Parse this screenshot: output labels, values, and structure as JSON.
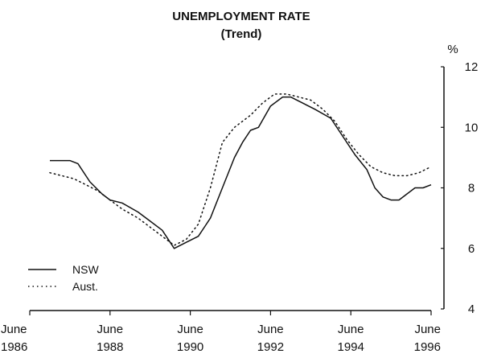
{
  "chart_data": {
    "type": "line",
    "title": "UNEMPLOYMENT RATE",
    "subtitle": "(Trend)",
    "y_unit": "%",
    "ylim": [
      4,
      12
    ],
    "y_ticks": [
      "4",
      "6",
      "8",
      "10",
      "12"
    ],
    "y_axis_side": "right",
    "x_ticks": [
      {
        "line1": "June",
        "line2": "1986"
      },
      {
        "line1": "June",
        "line2": "1988"
      },
      {
        "line1": "June",
        "line2": "1990"
      },
      {
        "line1": "June",
        "line2": "1992"
      },
      {
        "line1": "June",
        "line2": "1994"
      },
      {
        "line1": "June",
        "line2": "1996"
      }
    ],
    "xlim": [
      1986.5,
      1996.5
    ],
    "grid": false,
    "legend_position": "bottom-left",
    "series": [
      {
        "name": "NSW",
        "style": "solid",
        "x": [
          1987.0,
          1987.3,
          1987.5,
          1987.7,
          1988.0,
          1988.3,
          1988.5,
          1988.8,
          1989.2,
          1989.5,
          1989.8,
          1990.1,
          1990.4,
          1990.7,
          1991.0,
          1991.3,
          1991.6,
          1991.8,
          1992.0,
          1992.2,
          1992.5,
          1992.8,
          1993.0,
          1993.3,
          1993.6,
          1994.0,
          1994.3,
          1994.6,
          1994.9,
          1995.1,
          1995.3,
          1995.5,
          1995.7,
          1995.9,
          1996.1,
          1996.3,
          1996.5
        ],
        "values": [
          8.9,
          8.9,
          8.9,
          8.8,
          8.2,
          7.8,
          7.6,
          7.5,
          7.2,
          6.9,
          6.6,
          6.0,
          6.2,
          6.4,
          7.0,
          8.0,
          9.0,
          9.5,
          9.9,
          10.0,
          10.7,
          11.0,
          11.0,
          10.8,
          10.6,
          10.3,
          9.7,
          9.1,
          8.6,
          8.0,
          7.7,
          7.6,
          7.6,
          7.8,
          8.0,
          8.0,
          8.1
        ]
      },
      {
        "name": "Aust.",
        "style": "dotted",
        "x": [
          1987.0,
          1987.3,
          1987.6,
          1987.9,
          1988.2,
          1988.5,
          1988.8,
          1989.2,
          1989.5,
          1989.8,
          1990.1,
          1990.4,
          1990.7,
          1991.0,
          1991.3,
          1991.6,
          1992.0,
          1992.3,
          1992.6,
          1992.9,
          1993.2,
          1993.5,
          1993.8,
          1994.1,
          1994.4,
          1994.7,
          1995.0,
          1995.3,
          1995.6,
          1995.9,
          1996.2,
          1996.5
        ],
        "values": [
          8.5,
          8.4,
          8.3,
          8.1,
          7.9,
          7.6,
          7.3,
          7.0,
          6.7,
          6.4,
          6.1,
          6.3,
          6.8,
          8.0,
          9.5,
          10.0,
          10.4,
          10.8,
          11.1,
          11.1,
          11.0,
          10.9,
          10.6,
          10.2,
          9.6,
          9.1,
          8.7,
          8.5,
          8.4,
          8.4,
          8.5,
          8.7
        ]
      }
    ]
  }
}
